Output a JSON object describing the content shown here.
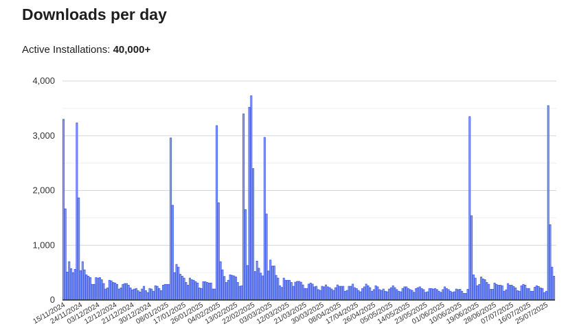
{
  "header": {
    "title": "Downloads per day",
    "installs_label": "Active Installations:",
    "installs_value": "40,000+"
  },
  "colors": {
    "bar_fill": "#8fa1f5",
    "bar_stroke": "#3b57e6",
    "grid_major": "#d6d6d6",
    "grid_minor": "#efefef",
    "axis": "#222222"
  },
  "chart_data": {
    "type": "bar",
    "title": "Downloads per day",
    "xlabel": "",
    "ylabel": "",
    "ylim": [
      0,
      4000
    ],
    "yticks": [
      0,
      1000,
      2000,
      3000,
      4000
    ],
    "ytick_labels": [
      "0",
      "1,000",
      "2,000",
      "3,000",
      "4,000"
    ],
    "grid": true,
    "start_date": "15/11/2024",
    "end_date": "29/07/2025",
    "xtick_every_days": 9,
    "xtick_labels": [
      "15/11/2024",
      "24/11/2024",
      "03/12/2024",
      "12/12/2024",
      "21/12/2024",
      "30/12/2024",
      "08/01/2025",
      "17/01/2025",
      "26/01/2025",
      "04/02/2025",
      "13/02/2025",
      "22/02/2025",
      "03/03/2025",
      "12/03/2025",
      "21/03/2025",
      "30/03/2025",
      "08/04/2025",
      "17/04/2025",
      "26/04/2025",
      "05/05/2025",
      "14/05/2025",
      "23/05/2025",
      "01/06/2025",
      "10/06/2025",
      "19/06/2025",
      "28/06/2025",
      "07/07/2025",
      "16/07/2025",
      "25/07/2025"
    ],
    "values": [
      3300,
      1665,
      510,
      700,
      573,
      500,
      560,
      3235,
      1866,
      535,
      700,
      550,
      460,
      435,
      410,
      285,
      285,
      410,
      400,
      410,
      370,
      300,
      200,
      220,
      360,
      350,
      320,
      310,
      285,
      200,
      220,
      285,
      300,
      300,
      270,
      220,
      185,
      200,
      210,
      170,
      145,
      200,
      250,
      170,
      135,
      210,
      200,
      160,
      260,
      250,
      210,
      170,
      270,
      285,
      285,
      285,
      2960,
      1730,
      500,
      650,
      600,
      470,
      435,
      400,
      320,
      270,
      400,
      370,
      360,
      335,
      310,
      220,
      210,
      335,
      335,
      320,
      310,
      310,
      200,
      200,
      3185,
      1775,
      700,
      550,
      430,
      320,
      360,
      460,
      450,
      440,
      420,
      320,
      250,
      260,
      3400,
      1650,
      630,
      3520,
      3730,
      2400,
      520,
      710,
      580,
      490,
      440,
      2970,
      1570,
      530,
      730,
      620,
      620,
      450,
      400,
      260,
      230,
      400,
      360,
      360,
      360,
      320,
      250,
      325,
      340,
      340,
      325,
      275,
      210,
      210,
      290,
      310,
      290,
      240,
      250,
      190,
      175,
      250,
      240,
      275,
      240,
      225,
      200,
      175,
      225,
      275,
      250,
      250,
      250,
      160,
      175,
      250,
      250,
      290,
      225,
      210,
      175,
      150,
      210,
      240,
      290,
      260,
      225,
      160,
      190,
      260,
      240,
      190,
      175,
      200,
      160,
      150,
      200,
      225,
      260,
      225,
      190,
      160,
      150,
      210,
      240,
      240,
      210,
      190,
      175,
      140,
      210,
      225,
      240,
      210,
      190,
      140,
      150,
      210,
      210,
      200,
      210,
      190,
      160,
      140,
      190,
      240,
      210,
      190,
      160,
      140,
      150,
      200,
      190,
      195,
      160,
      120,
      120,
      195,
      3350,
      1540,
      460,
      400,
      260,
      285,
      420,
      385,
      370,
      320,
      285,
      195,
      195,
      310,
      285,
      270,
      270,
      260,
      160,
      185,
      300,
      270,
      270,
      245,
      220,
      170,
      160,
      260,
      285,
      270,
      210,
      210,
      160,
      160,
      235,
      260,
      245,
      220,
      210,
      135,
      160,
      3550,
      1375,
      600,
      435
    ]
  }
}
